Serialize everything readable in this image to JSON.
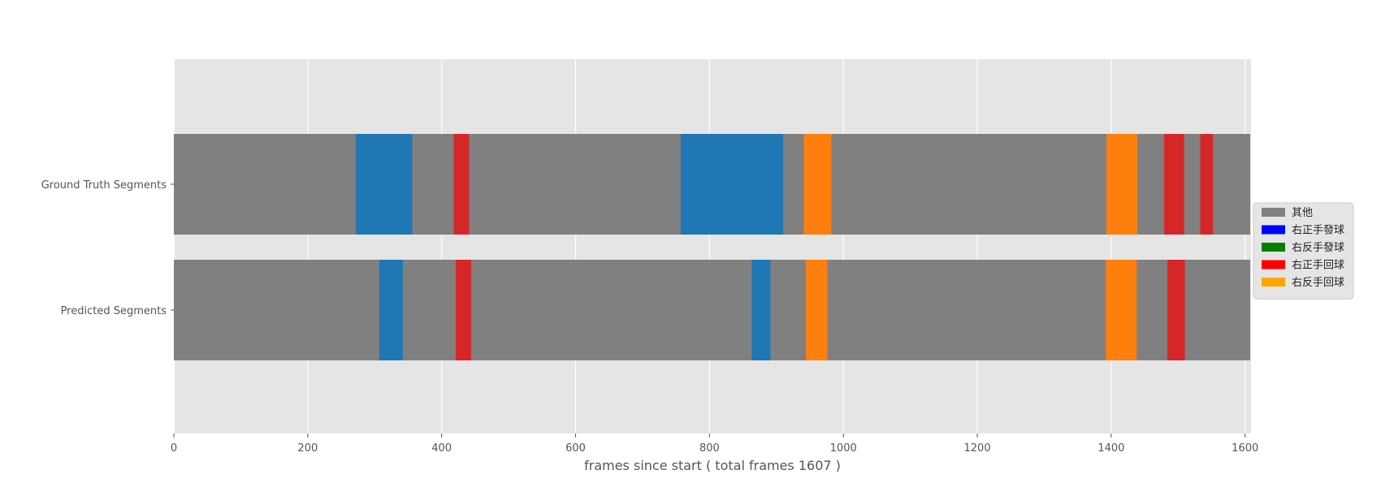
{
  "chart_data": {
    "type": "bar",
    "orientation": "horizontal-segments",
    "xlabel": "frames since start ( total frames 1607 )",
    "xlim": [
      0,
      1607
    ],
    "x_ticks": [
      0,
      200,
      400,
      600,
      800,
      1000,
      1200,
      1400,
      1600
    ],
    "grid": true,
    "legend_position": "right",
    "legend": [
      {
        "label": "其他",
        "color": "#808080"
      },
      {
        "label": "右正手發球",
        "color": "#0000ff"
      },
      {
        "label": "右反手發球",
        "color": "#008000"
      },
      {
        "label": "右正手回球",
        "color": "#ff0000"
      },
      {
        "label": "右反手回球",
        "color": "#ffa500"
      }
    ],
    "rows": [
      {
        "name": "Ground Truth Segments",
        "segments": [
          {
            "start": 0,
            "end": 272,
            "color": "#808080"
          },
          {
            "start": 272,
            "end": 356,
            "color": "#1f77b4"
          },
          {
            "start": 356,
            "end": 418,
            "color": "#808080"
          },
          {
            "start": 418,
            "end": 441,
            "color": "#d62728"
          },
          {
            "start": 441,
            "end": 757,
            "color": "#808080"
          },
          {
            "start": 757,
            "end": 910,
            "color": "#1f77b4"
          },
          {
            "start": 910,
            "end": 941,
            "color": "#808080"
          },
          {
            "start": 941,
            "end": 982,
            "color": "#ff7f0e"
          },
          {
            "start": 982,
            "end": 1393,
            "color": "#808080"
          },
          {
            "start": 1393,
            "end": 1439,
            "color": "#ff7f0e"
          },
          {
            "start": 1439,
            "end": 1479,
            "color": "#808080"
          },
          {
            "start": 1479,
            "end": 1509,
            "color": "#d62728"
          },
          {
            "start": 1509,
            "end": 1533,
            "color": "#808080"
          },
          {
            "start": 1533,
            "end": 1552,
            "color": "#d62728"
          },
          {
            "start": 1552,
            "end": 1607,
            "color": "#808080"
          }
        ]
      },
      {
        "name": "Predicted Segments",
        "segments": [
          {
            "start": 0,
            "end": 307,
            "color": "#808080"
          },
          {
            "start": 307,
            "end": 342,
            "color": "#1f77b4"
          },
          {
            "start": 342,
            "end": 421,
            "color": "#808080"
          },
          {
            "start": 421,
            "end": 444,
            "color": "#d62728"
          },
          {
            "start": 444,
            "end": 863,
            "color": "#808080"
          },
          {
            "start": 863,
            "end": 891,
            "color": "#1f77b4"
          },
          {
            "start": 891,
            "end": 944,
            "color": "#808080"
          },
          {
            "start": 944,
            "end": 976,
            "color": "#ff7f0e"
          },
          {
            "start": 976,
            "end": 1392,
            "color": "#808080"
          },
          {
            "start": 1392,
            "end": 1438,
            "color": "#ff7f0e"
          },
          {
            "start": 1438,
            "end": 1484,
            "color": "#808080"
          },
          {
            "start": 1484,
            "end": 1510,
            "color": "#d62728"
          },
          {
            "start": 1510,
            "end": 1607,
            "color": "#808080"
          }
        ]
      }
    ]
  }
}
